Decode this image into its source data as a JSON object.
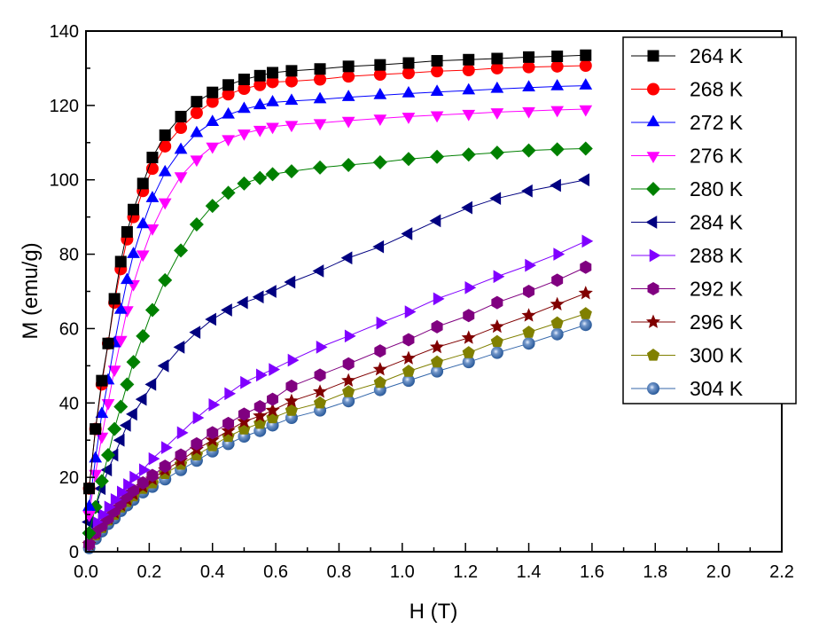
{
  "chart_data": {
    "type": "scatter",
    "title": "",
    "xlabel": "H (T)",
    "ylabel": "M (emu/g)",
    "xlim": [
      0,
      2.2
    ],
    "ylim": [
      0,
      140
    ],
    "xticks": [
      "0.0",
      "0.2",
      "0.4",
      "0.6",
      "0.8",
      "1.0",
      "1.2",
      "1.4",
      "1.6",
      "1.8",
      "2.0",
      "2.2"
    ],
    "yticks": [
      "0",
      "20",
      "40",
      "60",
      "80",
      "100",
      "120",
      "140"
    ],
    "grid": false,
    "legend_position": "top-right",
    "x": [
      0.01,
      0.03,
      0.05,
      0.07,
      0.09,
      0.11,
      0.13,
      0.15,
      0.18,
      0.21,
      0.25,
      0.3,
      0.35,
      0.4,
      0.45,
      0.5,
      0.55,
      0.59,
      0.65,
      0.74,
      0.83,
      0.93,
      1.02,
      1.11,
      1.21,
      1.3,
      1.4,
      1.49,
      1.58
    ],
    "series": [
      {
        "name": "264 K",
        "color": "#000000",
        "marker": "square",
        "values": [
          17,
          33,
          46,
          56,
          68,
          78,
          86,
          92,
          99,
          106,
          112,
          117,
          121,
          123.5,
          125.5,
          127,
          128,
          128.8,
          129.3,
          129.8,
          130.5,
          130.9,
          131.4,
          132,
          132.3,
          132.6,
          133,
          133.2,
          133.5
        ]
      },
      {
        "name": "268 K",
        "color": "#ff0000",
        "marker": "circle",
        "values": [
          17,
          33,
          45,
          56,
          67,
          76,
          84,
          90,
          97,
          103,
          109,
          114,
          118,
          121,
          123,
          124.5,
          125.5,
          126.3,
          126.5,
          127,
          127.8,
          128.3,
          128.7,
          129.2,
          129.5,
          130,
          130.3,
          130.5,
          130.7
        ]
      },
      {
        "name": "272 K",
        "color": "#0000ff",
        "marker": "triangle-up",
        "values": [
          12,
          25,
          37,
          46,
          56,
          65,
          73,
          80,
          88,
          95,
          102,
          108,
          112.5,
          115.5,
          117.5,
          119,
          120,
          120.8,
          121.2,
          121.6,
          122.2,
          122.7,
          123.2,
          123.6,
          124,
          124.4,
          124.8,
          125.1,
          125.3
        ]
      },
      {
        "name": "276 K",
        "color": "#ff00ff",
        "marker": "triangle-down",
        "values": [
          10,
          21,
          31,
          40,
          49,
          57,
          65,
          72,
          80,
          87,
          94,
          101,
          105.5,
          109,
          111,
          112.5,
          113.5,
          114.3,
          114.8,
          115.3,
          115.9,
          116.5,
          117,
          117.4,
          117.8,
          118.2,
          118.5,
          118.8,
          119
        ]
      },
      {
        "name": "280 K",
        "color": "#008000",
        "marker": "diamond",
        "values": [
          5,
          12,
          19,
          26,
          33,
          39,
          45,
          51,
          58,
          65,
          73,
          81,
          88,
          93,
          96.5,
          99,
          100.5,
          101.5,
          102.3,
          103.3,
          104,
          104.7,
          105.6,
          106.2,
          106.8,
          107.3,
          107.9,
          108.2,
          108.4
        ]
      },
      {
        "name": "284 K",
        "color": "#000080",
        "marker": "triangle-left",
        "values": [
          8,
          12,
          17,
          22,
          26,
          30,
          34,
          37,
          41,
          45,
          50,
          55,
          59,
          62.5,
          65,
          67,
          68.5,
          70,
          72.5,
          75.5,
          79,
          82,
          85.5,
          89,
          92.5,
          95,
          97,
          98.5,
          100
        ]
      },
      {
        "name": "288 K",
        "color": "#8000ff",
        "marker": "triangle-right",
        "values": [
          5,
          8,
          10,
          12,
          14,
          16,
          18,
          20,
          22,
          25,
          28,
          32,
          36,
          39.5,
          42.5,
          45.5,
          47.5,
          49,
          51.5,
          55,
          58,
          61.5,
          64.5,
          68,
          71,
          74,
          77,
          80,
          83.5
        ]
      },
      {
        "name": "292 K",
        "color": "#800080",
        "marker": "hexagon",
        "values": [
          2,
          5,
          7,
          9,
          11,
          13,
          15,
          16.5,
          18.5,
          20.5,
          23,
          26,
          29,
          32,
          34.5,
          37,
          39,
          41,
          44.5,
          47.5,
          50.5,
          54,
          57,
          60.5,
          63.5,
          67,
          70,
          73,
          76.5
        ]
      },
      {
        "name": "296 K",
        "color": "#800000",
        "marker": "star",
        "values": [
          2,
          5,
          7,
          9,
          10.5,
          12.5,
          14,
          15.5,
          17.5,
          19.5,
          22,
          24.5,
          27.5,
          30,
          32.5,
          35,
          36.5,
          38,
          40.5,
          43,
          46,
          49,
          52,
          55,
          57.5,
          60.5,
          63.5,
          66.5,
          69.5
        ]
      },
      {
        "name": "300 K",
        "color": "#808000",
        "marker": "pentagon",
        "values": [
          2,
          4.5,
          6.5,
          8.5,
          10,
          12,
          13.5,
          15,
          17,
          18.5,
          21,
          23.5,
          26,
          28.5,
          31,
          33,
          34.5,
          36,
          38,
          40,
          43,
          45.5,
          48.5,
          51,
          53.5,
          56.5,
          59,
          61.5,
          64
        ]
      },
      {
        "name": "304 K",
        "color": "#3366aa",
        "marker": "sphere",
        "values": [
          1,
          3.5,
          5.5,
          7.5,
          9,
          11,
          12.5,
          14,
          16,
          17.5,
          19.5,
          22,
          24.5,
          27,
          29,
          31,
          32.5,
          34,
          36,
          38,
          40.5,
          43.5,
          46,
          48.5,
          51,
          53.5,
          56,
          58.5,
          61
        ]
      }
    ]
  }
}
